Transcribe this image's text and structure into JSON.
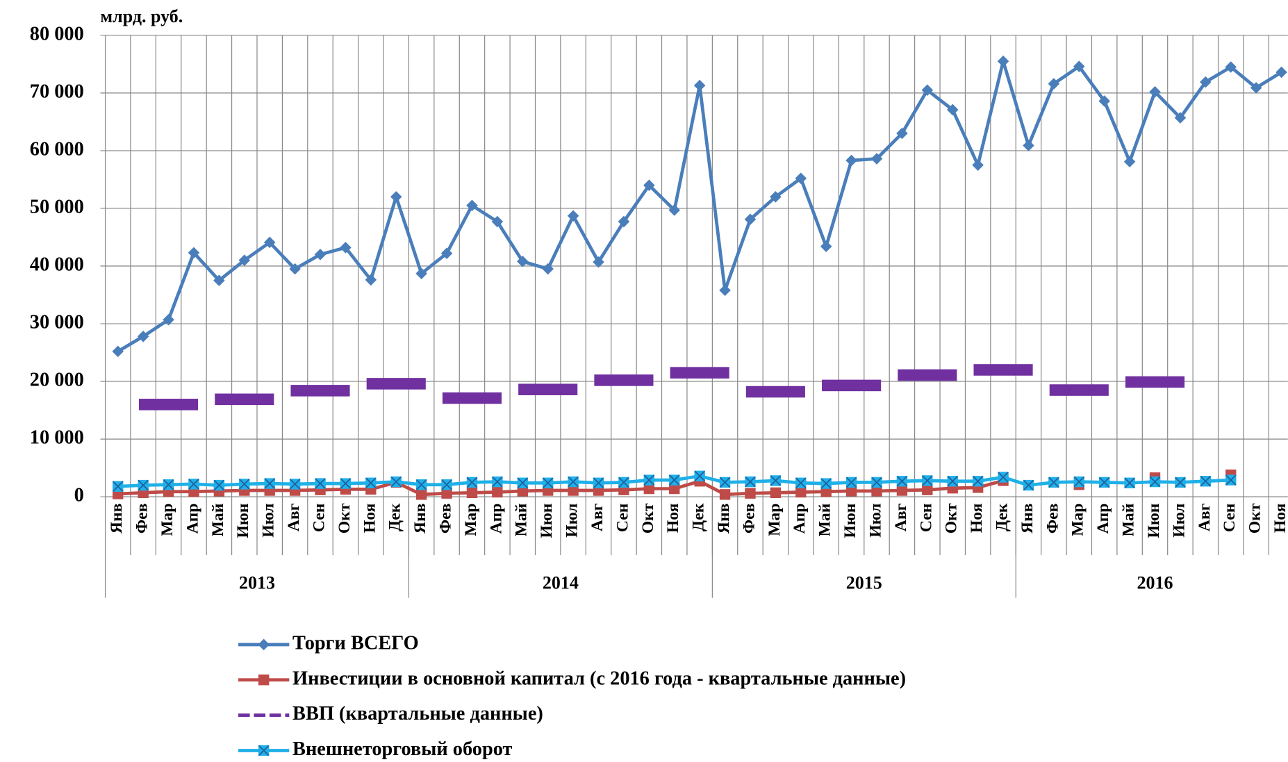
{
  "chart_data": {
    "type": "line",
    "y_label": "млрд. руб.",
    "groups": [
      {
        "label": "2013",
        "months": [
          "Янв",
          "Фев",
          "Мар",
          "Апр",
          "Май",
          "Июн",
          "Июл",
          "Авг",
          "Сен",
          "Окт",
          "Ноя",
          "Дек"
        ]
      },
      {
        "label": "2014",
        "months": [
          "Янв",
          "Фев",
          "Мар",
          "Апр",
          "Май",
          "Июн",
          "Июл",
          "Авг",
          "Сен",
          "Окт",
          "Ноя",
          "Дек"
        ]
      },
      {
        "label": "2015",
        "months": [
          "Янв",
          "Фев",
          "Мар",
          "Апр",
          "Май",
          "Июн",
          "Июл",
          "Авг",
          "Сен",
          "Окт",
          "Ноя",
          "Дек"
        ]
      },
      {
        "label": "2016",
        "months": [
          "Янв",
          "Фев",
          "Мар",
          "Апр",
          "Май",
          "Июн",
          "Июл",
          "Авг",
          "Сен",
          "Окт",
          "Ноя"
        ]
      }
    ],
    "ylim": [
      0,
      80000
    ],
    "yticks": [
      {
        "value": 0,
        "label": "0"
      },
      {
        "value": 10000,
        "label": "10 000"
      },
      {
        "value": 20000,
        "label": "20 000"
      },
      {
        "value": 30000,
        "label": "30 000"
      },
      {
        "value": 40000,
        "label": "40 000"
      },
      {
        "value": 50000,
        "label": "50 000"
      },
      {
        "value": 60000,
        "label": "60 000"
      },
      {
        "value": 70000,
        "label": "70 000"
      },
      {
        "value": 80000,
        "label": "80 000"
      }
    ],
    "grid": true,
    "legend": "bottom",
    "series": [
      {
        "name": "Торги ВСЕГО",
        "color": "#4a7ebb",
        "marker": "diamond",
        "values": [
          25200,
          27800,
          30700,
          42300,
          37500,
          41000,
          44100,
          39500,
          42000,
          43200,
          37600,
          52000,
          38700,
          42200,
          50500,
          47700,
          40800,
          39500,
          48700,
          40700,
          47700,
          54000,
          49700,
          71300,
          35800,
          48100,
          52000,
          55200,
          43400,
          58300,
          58600,
          63000,
          70500,
          67100,
          57500,
          75500,
          60900,
          71600,
          74600,
          68600,
          58100,
          70200,
          65700,
          71900,
          74500,
          70900,
          73600
        ]
      },
      {
        "name": "Инвестиции в основной капитал (с 2016 года - квартальные данные)",
        "color": "#be4b48",
        "marker": "square",
        "values": [
          500,
          700,
          900,
          900,
          1000,
          1100,
          1100,
          1100,
          1200,
          1300,
          1300,
          2500,
          400,
          600,
          700,
          800,
          1000,
          1100,
          1100,
          1100,
          1200,
          1400,
          1400,
          2700,
          400,
          600,
          700,
          800,
          900,
          1000,
          1000,
          1100,
          1200,
          1500,
          1600,
          2800,
          null,
          null,
          2100,
          null,
          null,
          3300,
          null,
          null,
          3800,
          null,
          null
        ]
      },
      {
        "name": "ВВП (квартальные данные)",
        "color": "#7030a0",
        "marker": "dash",
        "values": [
          null,
          null,
          16000,
          null,
          null,
          16900,
          null,
          null,
          18400,
          null,
          null,
          19600,
          null,
          null,
          17100,
          null,
          null,
          18600,
          null,
          null,
          20200,
          null,
          null,
          21500,
          null,
          null,
          18200,
          null,
          null,
          19300,
          null,
          null,
          21100,
          null,
          null,
          22000,
          null,
          null,
          18500,
          null,
          null,
          19900,
          null,
          null,
          null,
          null,
          null
        ]
      },
      {
        "name": "Внешнеторговый оборот",
        "color": "#1fb0e8",
        "marker": "xsquare",
        "values": [
          1800,
          2000,
          2100,
          2200,
          2000,
          2200,
          2300,
          2200,
          2300,
          2300,
          2400,
          2600,
          2100,
          2100,
          2500,
          2600,
          2400,
          2400,
          2600,
          2400,
          2500,
          2900,
          2900,
          3600,
          2500,
          2600,
          2800,
          2400,
          2300,
          2500,
          2500,
          2700,
          2800,
          2700,
          2700,
          3400,
          2000,
          2500,
          2600,
          2500,
          2400,
          2600,
          2500,
          2700,
          2900,
          null,
          null
        ]
      }
    ]
  }
}
